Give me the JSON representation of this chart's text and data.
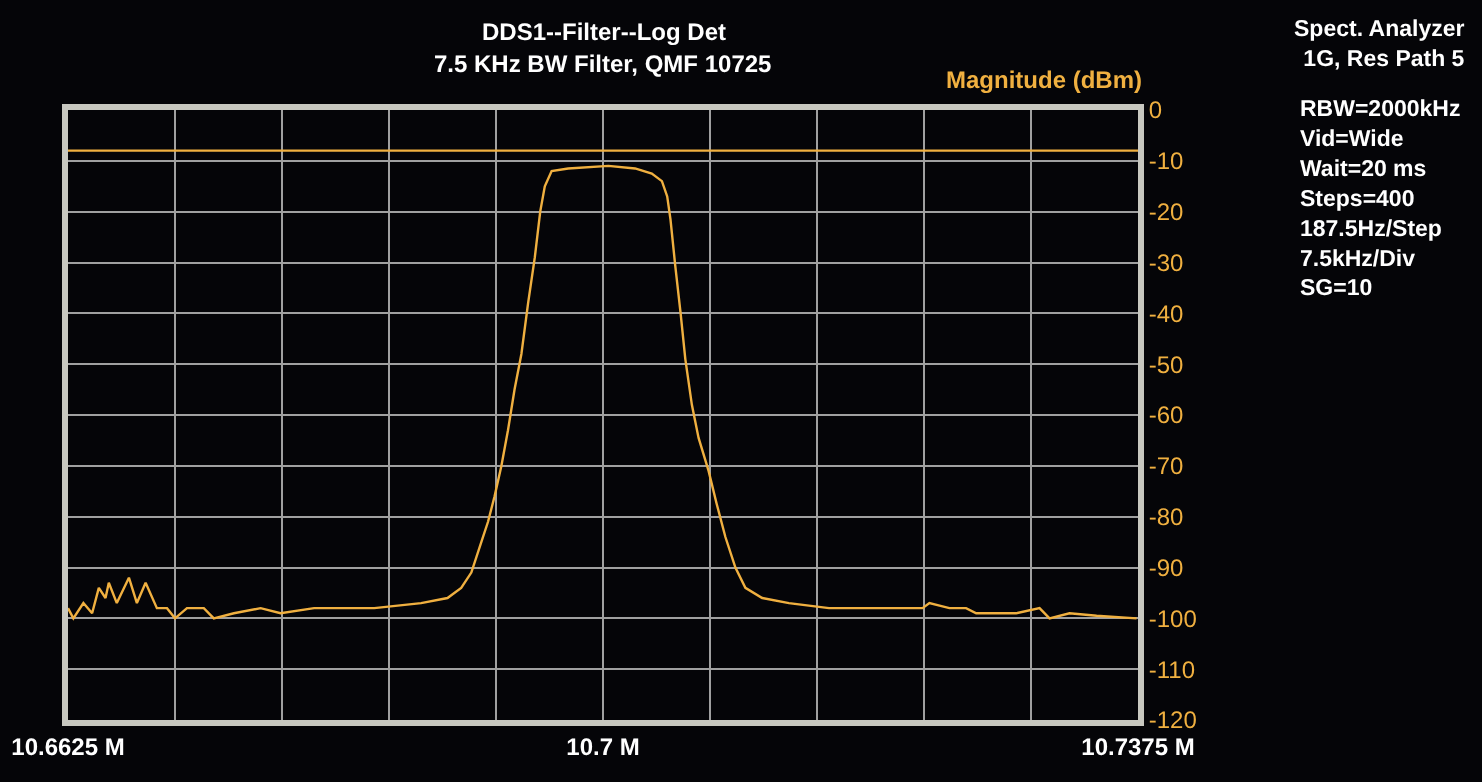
{
  "chart_data": {
    "type": "line",
    "title": "DDS1--Filter--Log Det",
    "subtitle": "7.5 KHz BW Filter, QMF 10725",
    "ylabel": "Magnitude (dBm)",
    "x": [
      10.6625,
      10.662875,
      10.66358,
      10.66419,
      10.66466,
      10.66513,
      10.66536,
      10.66592,
      10.66677,
      10.66733,
      10.66794,
      10.66873,
      10.66944,
      10.67,
      10.67084,
      10.67202,
      10.67272,
      10.67413,
      10.676,
      10.6774,
      10.67975,
      10.68397,
      10.68725,
      10.6891,
      10.69006,
      10.69077,
      10.69147,
      10.69194,
      10.6924,
      10.69288,
      10.69334,
      10.6938,
      10.69428,
      10.69475,
      10.69522,
      10.6956,
      10.69592,
      10.6964,
      10.69756,
      10.70038,
      10.70225,
      10.70342,
      10.70413,
      10.7045,
      10.70473,
      10.70506,
      10.70544,
      10.70577,
      10.70623,
      10.7067,
      10.7074,
      10.70797,
      10.70858,
      10.70928,
      10.70998,
      10.71116,
      10.71303,
      10.71584,
      10.72006,
      10.7224,
      10.72288,
      10.72428,
      10.72545,
      10.72616,
      10.72897,
      10.7306,
      10.7313,
      10.7327,
      10.7346,
      10.7374
    ],
    "series": [
      {
        "color": "#f0b040",
        "values": [
          -98,
          -100,
          -97,
          -99,
          -94,
          -96,
          -93,
          -97,
          -92,
          -97,
          -93,
          -98,
          -98,
          -100,
          -98,
          -98,
          -100,
          -99,
          -98,
          -99,
          -98,
          -98,
          -97,
          -96,
          -94,
          -91,
          -85,
          -81,
          -76,
          -70,
          -63,
          -55,
          -48,
          -38,
          -29,
          -20,
          -15,
          -12,
          -11.5,
          -11,
          -11.5,
          -12.5,
          -14,
          -17,
          -21.5,
          -30.5,
          -40,
          -49,
          -58,
          -64.5,
          -71,
          -77.5,
          -84,
          -90,
          -94,
          -96,
          -97,
          -98,
          -98,
          -98,
          -97,
          -98,
          -98,
          -99,
          -99,
          -98,
          -100,
          -99,
          -99.5,
          -100
        ]
      }
    ],
    "xlim": [
      10.6625,
      10.7375
    ],
    "xticks": [
      {
        "value": 10.6625,
        "label": "10.6625 M"
      },
      {
        "value": 10.67,
        "label": null
      },
      {
        "value": 10.6775,
        "label": null
      },
      {
        "value": 10.685,
        "label": null
      },
      {
        "value": 10.6925,
        "label": null
      },
      {
        "value": 10.7,
        "label": "10.7 M"
      },
      {
        "value": 10.7075,
        "label": null
      },
      {
        "value": 10.715,
        "label": null
      },
      {
        "value": 10.7225,
        "label": null
      },
      {
        "value": 10.73,
        "label": null
      },
      {
        "value": 10.7375,
        "label": "10.7375 M"
      }
    ],
    "ylim": [
      -120,
      0
    ],
    "yticks": [
      0,
      -10,
      -20,
      -30,
      -40,
      -50,
      -60,
      -70,
      -80,
      -90,
      -100,
      -110,
      -120
    ],
    "ref_lines": [
      {
        "axis": "y",
        "value": -8,
        "color": "#f0b040"
      }
    ],
    "grid": true,
    "marker": "none",
    "line_style": "solid",
    "annotations": [
      "Spect. Analyzer\n1G, Res Path 5",
      "RBW=2000kHz\nVid=Wide\nWait=20 ms\nSteps=400\n187.5Hz/Step\n7.5kHz/Div\nSG=10"
    ]
  }
}
